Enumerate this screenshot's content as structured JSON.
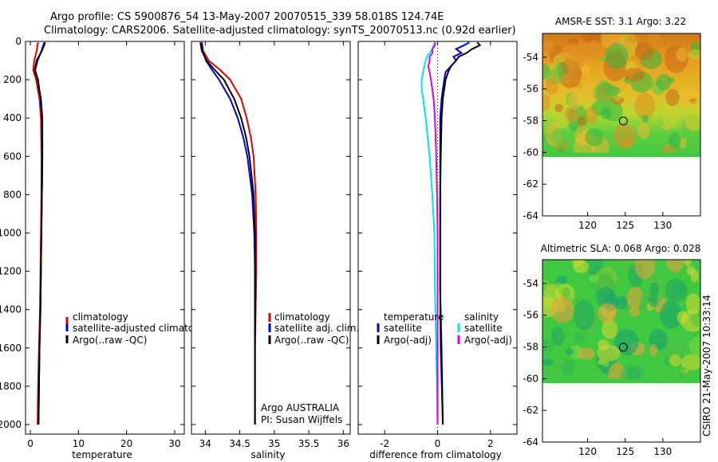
{
  "title_line1": "Argo profile: CS 5900876_54 13-May-2007 20070515_339 58.018S 124.74E",
  "title_line2": "Climatology: CARS2006. Satellite-adjusted climatology: synTS_20070513.nc (0.92d earlier)",
  "stamp": "CSIRO 21-May-2007 10:33:14",
  "colors": {
    "red": "#e00000",
    "blue": "#0000dd",
    "black": "#000000",
    "cyan": "#00e5e5",
    "magenta": "#e000e0"
  },
  "chart_data": [
    {
      "type": "line",
      "name": "temperature",
      "xlabel": "temperature",
      "xlim": [
        -1,
        32
      ],
      "ylim": [
        2050,
        0
      ],
      "xticks": [
        0,
        10,
        20,
        30
      ],
      "yticks": [
        0,
        200,
        400,
        600,
        800,
        1000,
        1200,
        1400,
        1600,
        1800,
        2000
      ],
      "legend": [
        "climatology",
        "satellite-adjusted climatology",
        "Argo(..raw -QC)"
      ],
      "depth": [
        5,
        50,
        100,
        150,
        200,
        300,
        400,
        600,
        800,
        1000,
        1200,
        1400,
        1600,
        1800,
        2000
      ],
      "series": [
        {
          "name": "climatology",
          "color": "red",
          "values": [
            1.6,
            1.3,
            0.8,
            0.6,
            1.2,
            1.9,
            2.2,
            2.3,
            2.3,
            2.2,
            2.1,
            2.0,
            1.8,
            1.6,
            1.5
          ]
        },
        {
          "name": "satellite-adjusted climatology",
          "color": "blue",
          "values": [
            2.9,
            2.3,
            1.5,
            1.0,
            1.6,
            2.1,
            2.4,
            2.5,
            2.4,
            2.3,
            2.2,
            2.1,
            1.9,
            1.8,
            1.7
          ]
        },
        {
          "name": "Argo(..raw -QC)",
          "color": "black",
          "values": [
            3.1,
            2.4,
            1.3,
            0.9,
            1.5,
            2.2,
            2.5,
            2.5,
            2.4,
            2.3,
            2.2,
            2.1,
            1.9,
            1.8,
            1.7
          ]
        }
      ]
    },
    {
      "type": "line",
      "name": "salinity",
      "xlabel": "salinity",
      "xlim": [
        33.8,
        36.1
      ],
      "ylim": [
        2050,
        0
      ],
      "xticks": [
        34,
        34.5,
        35,
        35.5,
        36
      ],
      "legend": [
        "climatology",
        "satellite adj. clim.",
        "Argo(..raw -QC)"
      ],
      "annotation": [
        "Argo AUSTRALIA",
        "PI: Susan Wijffels"
      ],
      "depth": [
        5,
        50,
        100,
        150,
        200,
        300,
        400,
        500,
        600,
        800,
        1000,
        1200,
        1400,
        1600,
        1800,
        2000
      ],
      "series": [
        {
          "name": "climatology",
          "color": "red",
          "values": [
            33.95,
            33.97,
            34.05,
            34.22,
            34.36,
            34.52,
            34.6,
            34.66,
            34.7,
            34.73,
            34.74,
            34.74,
            34.73,
            34.72,
            34.72,
            34.72
          ]
        },
        {
          "name": "satellite adj. clim.",
          "color": "blue",
          "values": [
            33.95,
            33.96,
            34.01,
            34.1,
            34.2,
            34.36,
            34.47,
            34.55,
            34.61,
            34.68,
            34.71,
            34.72,
            34.72,
            34.72,
            34.72,
            34.72
          ]
        },
        {
          "name": "Argo(..raw -QC)",
          "color": "black",
          "values": [
            33.93,
            33.95,
            34.02,
            34.14,
            34.27,
            34.42,
            34.52,
            34.59,
            34.64,
            34.7,
            34.72,
            34.72,
            34.72,
            34.72,
            34.72,
            34.72
          ]
        }
      ]
    },
    {
      "type": "line",
      "name": "difference",
      "xlabel": "difference from climatology",
      "xlim": [
        -3,
        3
      ],
      "ylim": [
        2050,
        0
      ],
      "xticks": [
        -2,
        0,
        2
      ],
      "legend_temperature_title": "temperature",
      "legend_salinity_title": "salinity",
      "legend_temperature": [
        "satellite",
        "Argo(-adj)"
      ],
      "legend_salinity": [
        "satellite",
        "Argo(-adj)"
      ],
      "depth": [
        5,
        20,
        40,
        60,
        80,
        100,
        130,
        160,
        200,
        250,
        300,
        400,
        600,
        800,
        1000,
        1300,
        1600,
        2000
      ],
      "series": [
        {
          "name": "temperature satellite",
          "color": "blue",
          "values": [
            1.2,
            1.0,
            0.7,
            0.9,
            0.6,
            0.7,
            0.5,
            0.3,
            0.25,
            0.2,
            0.15,
            0.1,
            0.1,
            0.1,
            0.1,
            0.1,
            0.15,
            0.2
          ]
        },
        {
          "name": "temperature Argo(-adj)",
          "color": "black",
          "values": [
            1.5,
            1.6,
            1.3,
            1.1,
            0.8,
            0.7,
            0.5,
            0.4,
            0.3,
            0.25,
            0.2,
            0.15,
            0.12,
            0.1,
            0.1,
            0.1,
            0.12,
            0.2
          ]
        },
        {
          "name": "salinity satellite",
          "color": "cyan",
          "values": [
            -0.1,
            -0.15,
            -0.2,
            -0.3,
            -0.4,
            -0.45,
            -0.5,
            -0.55,
            -0.6,
            -0.6,
            -0.55,
            -0.45,
            -0.3,
            -0.2,
            -0.12,
            -0.1,
            -0.05,
            0.0
          ]
        },
        {
          "name": "salinity Argo(-adj)",
          "color": "magenta",
          "values": [
            -0.1,
            -0.1,
            -0.2,
            -0.2,
            -0.3,
            -0.3,
            -0.35,
            -0.3,
            -0.25,
            -0.2,
            -0.15,
            -0.1,
            -0.05,
            -0.02,
            0.0,
            0.0,
            0.0,
            0.0
          ]
        }
      ]
    },
    {
      "type": "heatmap",
      "name": "sst_map",
      "title": "AMSR-E SST: 3.1 Argo: 3.22",
      "xlim": [
        114,
        135
      ],
      "ylim": [
        -64,
        -52.5
      ],
      "xticks": [
        120,
        125,
        130
      ],
      "yticks": [
        -54,
        -56,
        -58,
        -60,
        -62,
        -64
      ],
      "data_bottom": -60,
      "argo_position": {
        "lon": 124.74,
        "lat": -58.018
      }
    },
    {
      "type": "heatmap",
      "name": "sla_map",
      "title": "Altimetric SLA: 0.068 Argo: 0.028",
      "xlim": [
        114,
        135
      ],
      "ylim": [
        -64,
        -52.5
      ],
      "xticks": [
        120,
        125,
        130
      ],
      "yticks": [
        -54,
        -56,
        -58,
        -60,
        -62,
        -64
      ],
      "data_bottom": -60,
      "argo_position": {
        "lon": 124.74,
        "lat": -58.018
      }
    }
  ]
}
